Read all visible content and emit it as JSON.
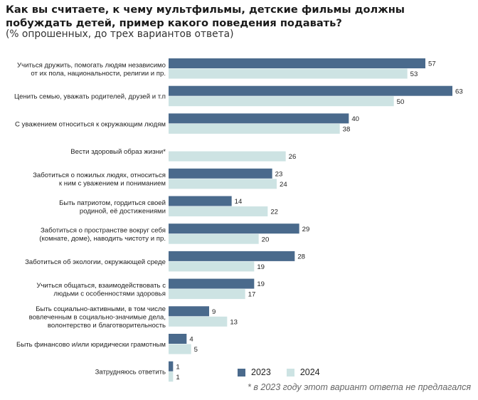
{
  "title": "Как вы считаете, к чему мультфильмы, детские фильмы должны побуждать детей, пример какого поведения подавать?",
  "subtitle": "(% опрошенных, до трех вариантов ответа)",
  "footnote": "* в 2023 году этот вариант ответа не предлагался",
  "colors": {
    "y2023": "#4a6a8c",
    "y2024": "#cde3e3"
  },
  "chart_data": {
    "type": "bar",
    "orientation": "horizontal",
    "title": "Как вы считаете, к чему мультфильмы, детские фильмы должны побуждать детей, пример какого поведения подавать?",
    "subtitle": "(% опрошенных, до трех вариантов ответа)",
    "categories": [
      [
        "Учиться дружить, помогать людям независимо",
        "от их пола, национальности, религии и пр."
      ],
      [
        "Ценить семью, уважать родителей, друзей и т.п"
      ],
      [
        "С уважением относиться к окружающим людям"
      ],
      [
        "Вести здоровый образ жизни*"
      ],
      [
        "Заботиться о пожилых людях, относиться",
        "к ним с уважением и пониманием"
      ],
      [
        "Быть патриотом, гордиться своей",
        "родиной, её достижениями"
      ],
      [
        "Заботиться о пространстве вокруг себя",
        "(комнате, доме), наводить чистоту и пр."
      ],
      [
        "Заботиться об экологии, окружающей среде"
      ],
      [
        "Учиться общаться, взаимодействовать с",
        "людьми с особенностями здоровья"
      ],
      [
        "Быть социально-активными, в том числе",
        "вовлеченным в социально-значимые дела,",
        "волонтерство и благотворительность"
      ],
      [
        "Быть финансово и/или юридически грамотным"
      ],
      [
        "Затрудняюсь ответить"
      ]
    ],
    "series": [
      {
        "name": "2023",
        "values": [
          57,
          63,
          40,
          null,
          23,
          14,
          29,
          28,
          19,
          9,
          4,
          1
        ]
      },
      {
        "name": "2024",
        "values": [
          53,
          50,
          38,
          26,
          24,
          22,
          20,
          19,
          17,
          13,
          5,
          1
        ]
      }
    ],
    "xlim": [
      0,
      63
    ],
    "legend_position": "bottom",
    "grid": false,
    "data_labels": true
  }
}
